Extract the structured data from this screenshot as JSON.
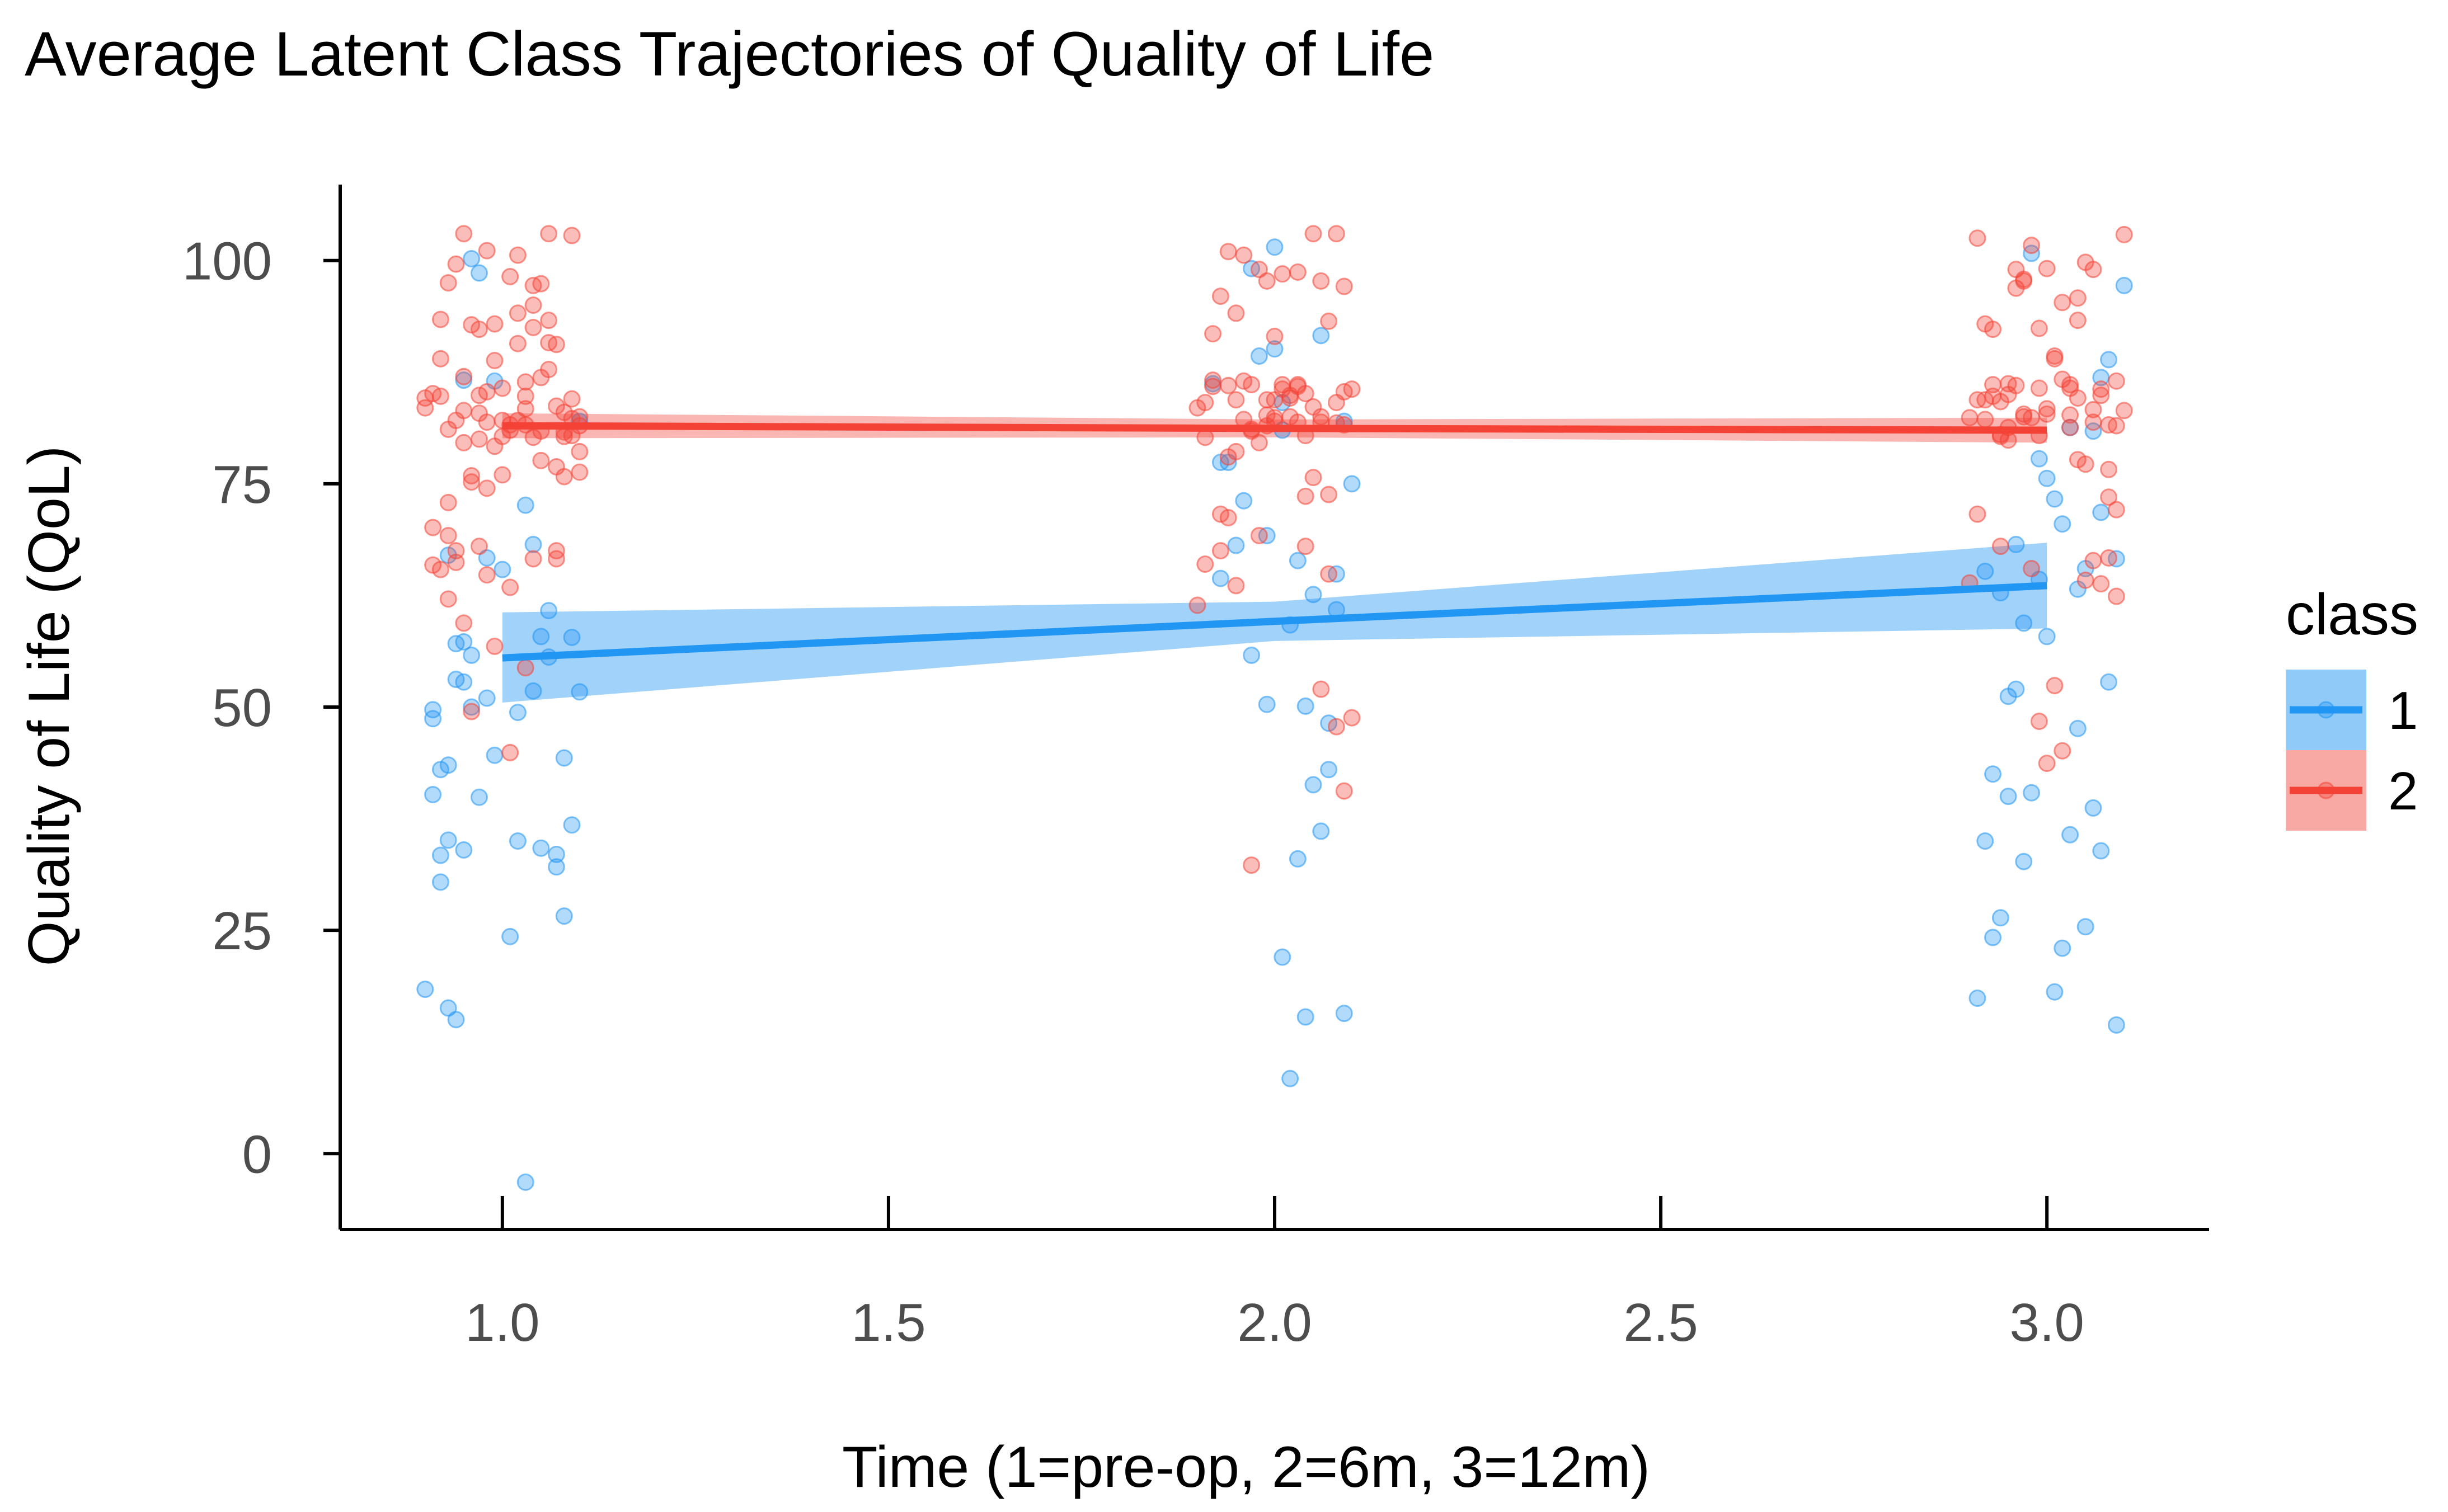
{
  "chart_data": {
    "type": "scatter",
    "title": "Average Latent Class Trajectories of Quality of Life",
    "xlabel": "Time (1=pre-op, 2=6m, 3=12m)",
    "ylabel": "Quality of Life (QoL)",
    "xlim": [
      0.79,
      3.21
    ],
    "ylim": [
      -8.5,
      108.5
    ],
    "x_ticks": [
      1.0,
      1.5,
      2.0,
      2.5,
      3.0
    ],
    "x_tick_labels": [
      "1.0",
      "1.5",
      "2.0",
      "2.5",
      "3.0"
    ],
    "y_ticks": [
      0,
      25,
      50,
      75,
      100
    ],
    "y_tick_labels": [
      "0",
      "25",
      "50",
      "75",
      "100"
    ],
    "grid": false,
    "legend": {
      "title": "class",
      "position": "right"
    },
    "series": [
      {
        "name": "1",
        "color": "#2196F3",
        "band_color": "#90CAF9",
        "fit": {
          "x": [
            1,
            2,
            3
          ],
          "y": [
            55.5,
            59.6,
            63.6
          ]
        },
        "ci_lower": [
          50.5,
          57.4,
          58.8
        ],
        "ci_upper": [
          60.6,
          61.8,
          68.4
        ],
        "points": {
          "x": [
            0.91,
            0.92,
            0.9,
            0.93,
            0.94,
            0.93,
            0.95,
            0.96,
            0.94,
            0.95,
            0.92,
            0.91,
            0.93,
            0.99,
            1.01,
            1.03,
            1.05,
            1.07,
            1.08,
            1.09,
            1.1,
            1.06,
            1.04,
            1.02,
            1.0,
            0.98,
            0.96,
            1.08,
            1.06,
            1.03,
            1.04,
            1.07,
            1.05,
            1.02,
            1.09,
            1.1,
            0.95,
            0.97,
            0.91,
            0.92,
            0.93,
            0.94,
            0.95,
            0.96,
            0.97,
            0.98,
            0.99,
            2.0,
            2.01,
            2.02,
            2.03,
            2.04,
            2.05,
            2.06,
            2.07,
            2.08,
            2.09,
            2.1,
            1.93,
            1.95,
            1.97,
            1.99,
            2.01,
            2.03,
            2.05,
            2.07,
            1.94,
            1.96,
            1.98,
            2.02,
            2.04,
            2.06,
            2.08,
            1.92,
            2.0,
            1.97,
            2.01,
            2.09,
            1.93,
            1.99,
            2.91,
            2.92,
            2.93,
            2.94,
            2.95,
            2.96,
            2.97,
            2.98,
            2.99,
            3.0,
            3.01,
            3.02,
            3.03,
            3.04,
            3.05,
            3.06,
            3.07,
            3.08,
            3.09,
            3.1,
            2.93,
            2.95,
            2.97,
            2.99,
            3.01,
            3.03,
            3.05,
            3.07,
            3.09,
            2.92,
            2.94,
            2.96,
            2.98,
            3.0,
            3.02,
            3.04,
            3.06,
            3.08,
            3.07
          ],
          "y": [
            40.2,
            30.4,
            18.4,
            16.3,
            15.0,
            35.1,
            34.0,
            50.0,
            53.1,
            57.3,
            43.0,
            49.7,
            67.0,
            44.6,
            24.3,
            -3.2,
            34.2,
            32.1,
            26.6,
            36.8,
            51.7,
            60.8,
            68.2,
            49.4,
            65.4,
            66.7,
            100.2,
            44.3,
            55.6,
            72.6,
            51.8,
            33.5,
            57.9,
            35.0,
            57.8,
            82.0,
            86.6,
            98.6,
            48.7,
            33.4,
            43.5,
            57.1,
            52.8,
            55.8,
            39.9,
            51.0,
            86.5,
            90.1,
            22.0,
            8.4,
            33.0,
            15.3,
            41.3,
            36.1,
            43.0,
            60.9,
            15.7,
            75.0,
            64.4,
            68.1,
            55.8,
            50.3,
            84.1,
            66.4,
            62.6,
            48.2,
            77.4,
            73.1,
            89.3,
            59.2,
            50.1,
            91.6,
            64.9,
            86.2,
            101.5,
            99.1,
            81.0,
            82.0,
            77.4,
            69.2,
            17.4,
            35.0,
            24.2,
            26.4,
            51.2,
            52.0,
            59.4,
            40.4,
            77.8,
            57.9,
            18.1,
            23.0,
            35.7,
            47.6,
            25.4,
            38.7,
            33.9,
            52.8,
            14.4,
            97.2,
            42.5,
            40.0,
            32.7,
            64.3,
            73.3,
            81.3,
            65.5,
            86.9,
            66.6,
            65.2,
            62.8,
            68.2,
            100.8,
            75.6,
            70.5,
            63.2,
            80.9,
            88.9,
            71.8
          ]
        }
      },
      {
        "name": "2",
        "color": "#F44336",
        "band_color": "#F8A9A4",
        "fit": {
          "x": [
            1,
            2,
            3
          ],
          "y": [
            81.5,
            81.2,
            81.0
          ]
        },
        "ci_lower": [
          80.1,
          80.2,
          79.6
        ],
        "ci_upper": [
          82.9,
          82.2,
          82.4
        ],
        "points": {
          "x": [
            0.9,
            0.91,
            0.92,
            0.93,
            0.94,
            0.95,
            0.96,
            0.97,
            0.98,
            0.99,
            1.0,
            1.01,
            1.02,
            1.03,
            1.04,
            1.05,
            1.06,
            1.07,
            1.08,
            1.09,
            1.1,
            0.9,
            0.91,
            0.92,
            0.93,
            0.94,
            0.95,
            0.96,
            0.97,
            0.98,
            0.99,
            1.0,
            1.01,
            1.02,
            1.03,
            1.04,
            1.05,
            1.06,
            1.07,
            1.08,
            1.09,
            1.1,
            0.92,
            0.94,
            0.96,
            0.98,
            1.0,
            1.02,
            1.04,
            1.06,
            1.08,
            1.1,
            0.93,
            0.95,
            0.97,
            0.99,
            1.01,
            1.03,
            1.05,
            1.07,
            1.09,
            0.91,
            0.93,
            0.95,
            0.97,
            0.99,
            1.01,
            1.03,
            1.05,
            1.07,
            1.09,
            0.94,
            0.96,
            0.98,
            1.0,
            1.02,
            1.04,
            1.06,
            1.08,
            0.92,
            0.95,
            0.98,
            1.01,
            1.04,
            1.07,
            1.1,
            0.93,
            0.97,
            1.03,
            1.9,
            1.91,
            1.92,
            1.93,
            1.94,
            1.95,
            1.96,
            1.97,
            1.98,
            1.99,
            2.0,
            2.01,
            2.02,
            2.03,
            2.04,
            2.05,
            2.06,
            2.07,
            2.08,
            2.09,
            2.1,
            1.9,
            1.92,
            1.94,
            1.96,
            1.98,
            2.0,
            2.02,
            2.04,
            2.06,
            2.08,
            2.1,
            1.91,
            1.93,
            1.95,
            1.97,
            1.99,
            2.01,
            2.03,
            2.05,
            2.07,
            2.09,
            1.92,
            1.94,
            1.96,
            1.98,
            2.0,
            2.02,
            2.04,
            2.06,
            2.08,
            1.93,
            1.95,
            1.97,
            1.99,
            2.01,
            2.03,
            2.05,
            2.07,
            2.09,
            1.91,
            1.94,
            1.97,
            2.0,
            2.03,
            2.06,
            2.09,
            1.95,
            1.99,
            2.04,
            2.08,
            2.9,
            2.91,
            2.92,
            2.93,
            2.94,
            2.95,
            2.96,
            2.97,
            2.98,
            2.99,
            3.0,
            3.01,
            3.02,
            3.03,
            3.04,
            3.05,
            3.06,
            3.07,
            3.08,
            3.09,
            3.1,
            2.9,
            2.92,
            2.94,
            2.96,
            2.98,
            3.0,
            3.02,
            3.04,
            3.06,
            3.08,
            3.1,
            2.91,
            2.93,
            2.95,
            2.97,
            2.99,
            3.01,
            3.03,
            3.05,
            3.07,
            3.09,
            2.92,
            2.94,
            2.96,
            2.98,
            3.0,
            3.02,
            3.04,
            3.06,
            3.08,
            2.93,
            2.95,
            2.97,
            2.99,
            3.01,
            3.03,
            3.05,
            3.07,
            3.09,
            2.91,
            2.94,
            2.97,
            3.0,
            3.03,
            3.06,
            3.09,
            2.95,
            2.99,
            3.04,
            3.08
          ],
          "y": [
            84.6,
            65.9,
            93.4,
            97.5,
            66.2,
            103.0,
            75.9,
            80.0,
            101.1,
            92.9,
            76.0,
            44.9,
            94.1,
            86.4,
            92.5,
            97.4,
            103.0,
            67.5,
            83.0,
            102.8,
            82.5,
            83.5,
            70.1,
            84.8,
            72.9,
            99.6,
            87.0,
            92.8,
            84.9,
            85.3,
            56.8,
            80.3,
            63.4,
            100.6,
            54.4,
            97.2,
            80.9,
            93.3,
            90.6,
            75.8,
            84.5,
            76.3,
            65.4,
            82.1,
            75.2,
            81.9,
            85.7,
            82.1,
            80.2,
            87.8,
            80.8,
            81.5,
            69.2,
            59.4,
            82.9,
            79.2,
            98.2,
            81.6,
            86.9,
            76.9,
            80.4,
            85.1,
            62.1,
            79.6,
            68.0,
            88.8,
            81.0,
            84.8,
            77.6,
            83.7,
            82.3,
            67.5,
            49.5,
            64.8,
            82.1,
            90.7,
            66.6,
            90.8,
            80.3,
            89.0,
            83.2,
            74.5,
            81.6,
            95.0,
            66.6,
            78.6,
            81.1,
            92.3,
            83.4,
            61.4,
            66.0,
            91.8,
            96.0,
            101.0,
            94.1,
            100.6,
            80.9,
            99.0,
            97.7,
            91.5,
            98.5,
            84.6,
            98.7,
            85.1,
            103.0,
            97.7,
            93.2,
            103.0,
            97.1,
            85.6,
            83.5,
            85.9,
            78.0,
            86.5,
            69.2,
            82.4,
            84.9,
            73.6,
            82.5,
            81.8,
            48.8,
            84.1,
            71.6,
            63.6,
            32.3,
            82.7,
            85.6,
            81.9,
            75.7,
            73.8,
            85.3,
            86.6,
            86.0,
            82.2,
            79.6,
            84.4,
            82.5,
            80.4,
            81.9,
            84.1,
            67.5,
            78.6,
            81.1,
            84.4,
            86.1,
            85.9,
            83.6,
            64.9,
            81.6,
            80.2,
            71.2,
            86.1,
            82.0,
            86.1,
            52.0,
            40.6,
            84.4,
            81.5,
            68.0,
            47.8,
            82.4,
            102.5,
            82.2,
            92.3,
            84.2,
            79.9,
            99.0,
            97.7,
            101.7,
            92.4,
            83.4,
            89.0,
            86.7,
            85.7,
            77.7,
            77.2,
            99.0,
            85.6,
            81.6,
            72.1,
            83.2,
            63.9,
            92.9,
            80.3,
            86.0,
            65.5,
            99.1,
            95.3,
            93.3,
            83.3,
            73.5,
            102.9,
            84.4,
            86.1,
            86.2,
            82.8,
            80.4,
            52.4,
            82.7,
            64.2,
            84.9,
            86.5,
            84.4,
            68.0,
            96.9,
            82.4,
            43.7,
            45.1,
            84.6,
            81.9,
            66.7,
            84.8,
            81.3,
            97.9,
            85.7,
            89.3,
            81.3,
            99.8,
            63.8,
            81.5,
            71.6,
            80.5,
            82.5,
            82.8,
            86.1,
            66.4,
            62.4,
            85.0,
            48.4,
            95.8,
            76.6
          ]
        }
      }
    ]
  }
}
